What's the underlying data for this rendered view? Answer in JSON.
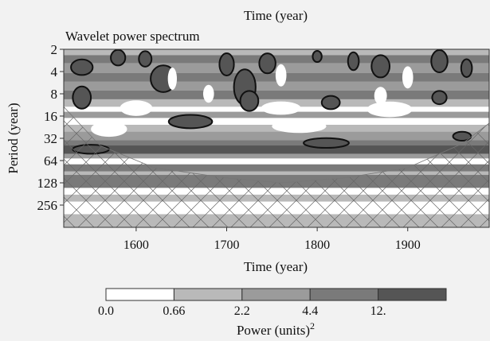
{
  "chart_data": {
    "type": "heatmap",
    "top_label": "Time (year)",
    "title": "Wavelet power spectrum",
    "xlabel": "Time (year)",
    "ylabel": "Period (year)",
    "x_range": [
      1520,
      1990
    ],
    "y_scale": "log2",
    "y_range": [
      2,
      512
    ],
    "x_ticks": [
      1600,
      1700,
      1800,
      1900
    ],
    "y_ticks": [
      2,
      4,
      8,
      16,
      32,
      64,
      128,
      256
    ],
    "colorbar": {
      "label": "Power (units)",
      "label_superscript": "2",
      "levels": [
        "0.0",
        "0.66",
        "2.2",
        "4.4",
        "12."
      ],
      "colors": [
        "#ffffff",
        "#b9b9b9",
        "#9b9b9b",
        "#7a7a7a",
        "#555555"
      ]
    },
    "hatched_region": "cone of influence",
    "cone_of_influence": {
      "x": [
        1520,
        1560,
        1620,
        1700,
        1760,
        1830,
        1900,
        1960,
        1990
      ],
      "period": [
        12,
        40,
        80,
        110,
        128,
        110,
        80,
        38,
        20
      ]
    },
    "bands": [
      {
        "p1": 2,
        "p2": 2.4,
        "level": 1
      },
      {
        "p1": 2.4,
        "p2": 3.1,
        "level": 3
      },
      {
        "p1": 3.1,
        "p2": 4.2,
        "level": 2
      },
      {
        "p1": 4.2,
        "p2": 5.5,
        "level": 3
      },
      {
        "p1": 5.5,
        "p2": 7.2,
        "level": 2
      },
      {
        "p1": 7.2,
        "p2": 9.5,
        "level": 3
      },
      {
        "p1": 9.5,
        "p2": 12,
        "level": 1
      },
      {
        "p1": 12,
        "p2": 14,
        "level": 0
      },
      {
        "p1": 14,
        "p2": 17,
        "level": 2
      },
      {
        "p1": 17,
        "p2": 21,
        "level": 0
      },
      {
        "p1": 21,
        "p2": 26,
        "level": 1
      },
      {
        "p1": 26,
        "p2": 34,
        "level": 2
      },
      {
        "p1": 34,
        "p2": 40,
        "level": 3
      },
      {
        "p1": 40,
        "p2": 52,
        "level": 4
      },
      {
        "p1": 52,
        "p2": 60,
        "level": 2
      },
      {
        "p1": 60,
        "p2": 72,
        "level": 0
      },
      {
        "p1": 72,
        "p2": 90,
        "level": 3
      },
      {
        "p1": 90,
        "p2": 100,
        "level": 1
      },
      {
        "p1": 100,
        "p2": 150,
        "level": 3
      },
      {
        "p1": 150,
        "p2": 185,
        "level": 0
      },
      {
        "p1": 185,
        "p2": 230,
        "level": 1
      },
      {
        "p1": 230,
        "p2": 340,
        "level": 0
      },
      {
        "p1": 340,
        "p2": 512,
        "level": 1
      }
    ],
    "patches": [
      {
        "x": 1540,
        "p": 3.5,
        "rx": 12,
        "rp": 0.35,
        "level": 4
      },
      {
        "x": 1580,
        "p": 2.6,
        "rx": 8,
        "rp": 0.35,
        "level": 4
      },
      {
        "x": 1610,
        "p": 2.7,
        "rx": 7,
        "rp": 0.35,
        "level": 4
      },
      {
        "x": 1700,
        "p": 3.2,
        "rx": 8,
        "rp": 0.5,
        "level": 4
      },
      {
        "x": 1745,
        "p": 3.1,
        "rx": 9,
        "rp": 0.45,
        "level": 4
      },
      {
        "x": 1800,
        "p": 2.5,
        "rx": 5,
        "rp": 0.25,
        "level": 4
      },
      {
        "x": 1840,
        "p": 2.9,
        "rx": 6,
        "rp": 0.4,
        "level": 4
      },
      {
        "x": 1870,
        "p": 3.4,
        "rx": 10,
        "rp": 0.5,
        "level": 4
      },
      {
        "x": 1935,
        "p": 2.9,
        "rx": 9,
        "rp": 0.5,
        "level": 4
      },
      {
        "x": 1965,
        "p": 3.6,
        "rx": 6,
        "rp": 0.4,
        "level": 4
      },
      {
        "x": 1630,
        "p": 5,
        "rx": 14,
        "rp": 0.6,
        "level": 4
      },
      {
        "x": 1720,
        "p": 6.5,
        "rx": 12,
        "rp": 0.8,
        "level": 4
      },
      {
        "x": 1540,
        "p": 9,
        "rx": 10,
        "rp": 0.5,
        "level": 4
      },
      {
        "x": 1725,
        "p": 10,
        "rx": 10,
        "rp": 0.45,
        "level": 4
      },
      {
        "x": 1815,
        "p": 10.5,
        "rx": 10,
        "rp": 0.3,
        "level": 4
      },
      {
        "x": 1935,
        "p": 9,
        "rx": 8,
        "rp": 0.3,
        "level": 4
      },
      {
        "x": 1660,
        "p": 19,
        "rx": 24,
        "rp": 0.3,
        "level": 4
      },
      {
        "x": 1810,
        "p": 37,
        "rx": 25,
        "rp": 0.22,
        "level": 4
      },
      {
        "x": 1550,
        "p": 45,
        "rx": 20,
        "rp": 0.2,
        "level": 4
      },
      {
        "x": 1960,
        "p": 30,
        "rx": 10,
        "rp": 0.2,
        "level": 4
      },
      {
        "x": 1600,
        "p": 12.5,
        "rx": 18,
        "rp": 0.35,
        "level": 0
      },
      {
        "x": 1760,
        "p": 12.5,
        "rx": 22,
        "rp": 0.3,
        "level": 0
      },
      {
        "x": 1880,
        "p": 13,
        "rx": 25,
        "rp": 0.35,
        "level": 0
      },
      {
        "x": 1570,
        "p": 24,
        "rx": 20,
        "rp": 0.35,
        "level": 0
      },
      {
        "x": 1780,
        "p": 22,
        "rx": 30,
        "rp": 0.3,
        "level": 0
      },
      {
        "x": 1640,
        "p": 5,
        "rx": 5,
        "rp": 0.5,
        "level": 0
      },
      {
        "x": 1760,
        "p": 4.5,
        "rx": 6,
        "rp": 0.5,
        "level": 0
      },
      {
        "x": 1900,
        "p": 4.8,
        "rx": 6,
        "rp": 0.5,
        "level": 0
      },
      {
        "x": 1680,
        "p": 8,
        "rx": 6,
        "rp": 0.4,
        "level": 0
      },
      {
        "x": 1870,
        "p": 8.5,
        "rx": 7,
        "rp": 0.4,
        "level": 0
      }
    ]
  }
}
